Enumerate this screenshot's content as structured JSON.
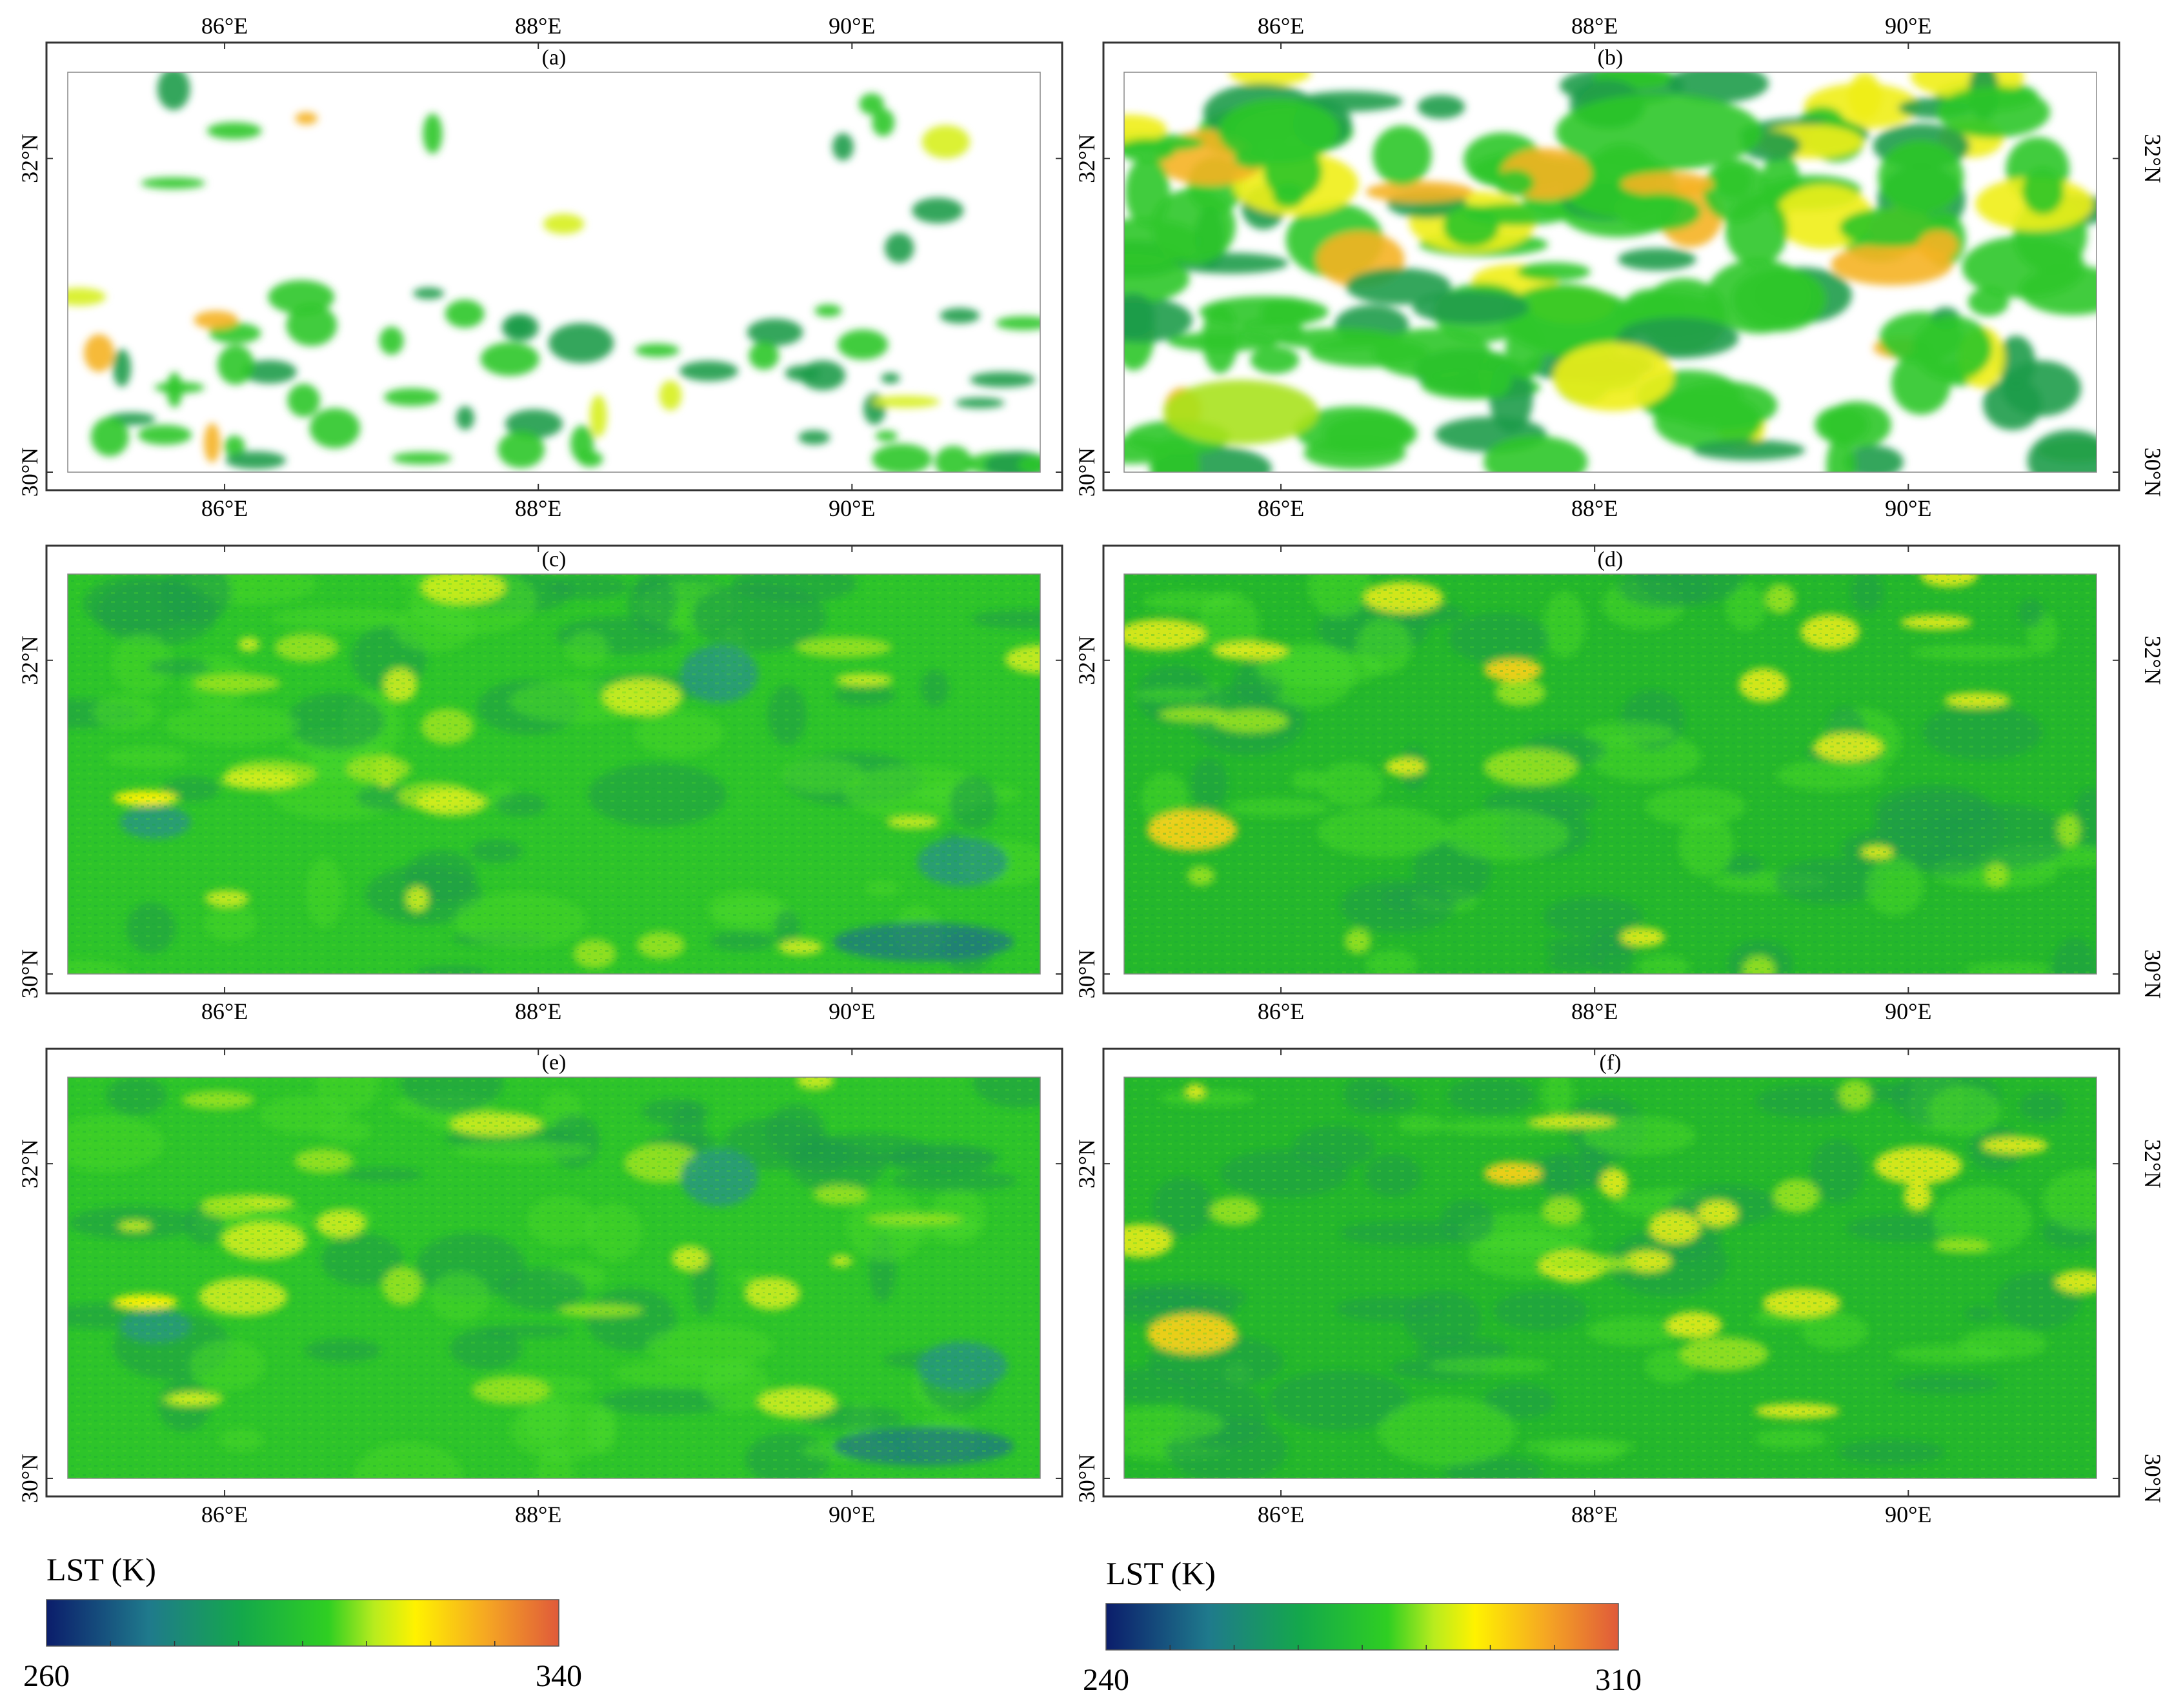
{
  "figure": {
    "panels": [
      {
        "label": "(a)",
        "coverage": "sparse",
        "scale": "left"
      },
      {
        "label": "(b)",
        "coverage": "partial",
        "scale": "right"
      },
      {
        "label": "(c)",
        "coverage": "full",
        "scale": "left"
      },
      {
        "label": "(d)",
        "coverage": "full",
        "scale": "right"
      },
      {
        "label": "(e)",
        "coverage": "full",
        "scale": "left"
      },
      {
        "label": "(f)",
        "coverage": "full",
        "scale": "right"
      }
    ],
    "lon_ticks": [
      "86°E",
      "88°E",
      "90°E"
    ],
    "lat_ticks": [
      "32°N",
      "30°N"
    ],
    "lon_values": [
      86,
      88,
      90
    ],
    "lat_values": [
      32,
      30
    ],
    "extent": {
      "lon_min": 85.0,
      "lon_max": 91.2,
      "lat_min": 30.0,
      "lat_max": 32.55
    },
    "colorbars": [
      {
        "title": "LST (K)",
        "min_label": "260",
        "max_label": "340",
        "min": 260,
        "max": 340
      },
      {
        "title": "LST (K)",
        "min_label": "240",
        "max_label": "310",
        "min": 240,
        "max": 310
      }
    ],
    "colormap": [
      "#0b1d6b",
      "#1f7a8c",
      "#14a84b",
      "#2fcf22",
      "#b8ec1e",
      "#fff200",
      "#f5a623",
      "#e05a3a"
    ]
  }
}
